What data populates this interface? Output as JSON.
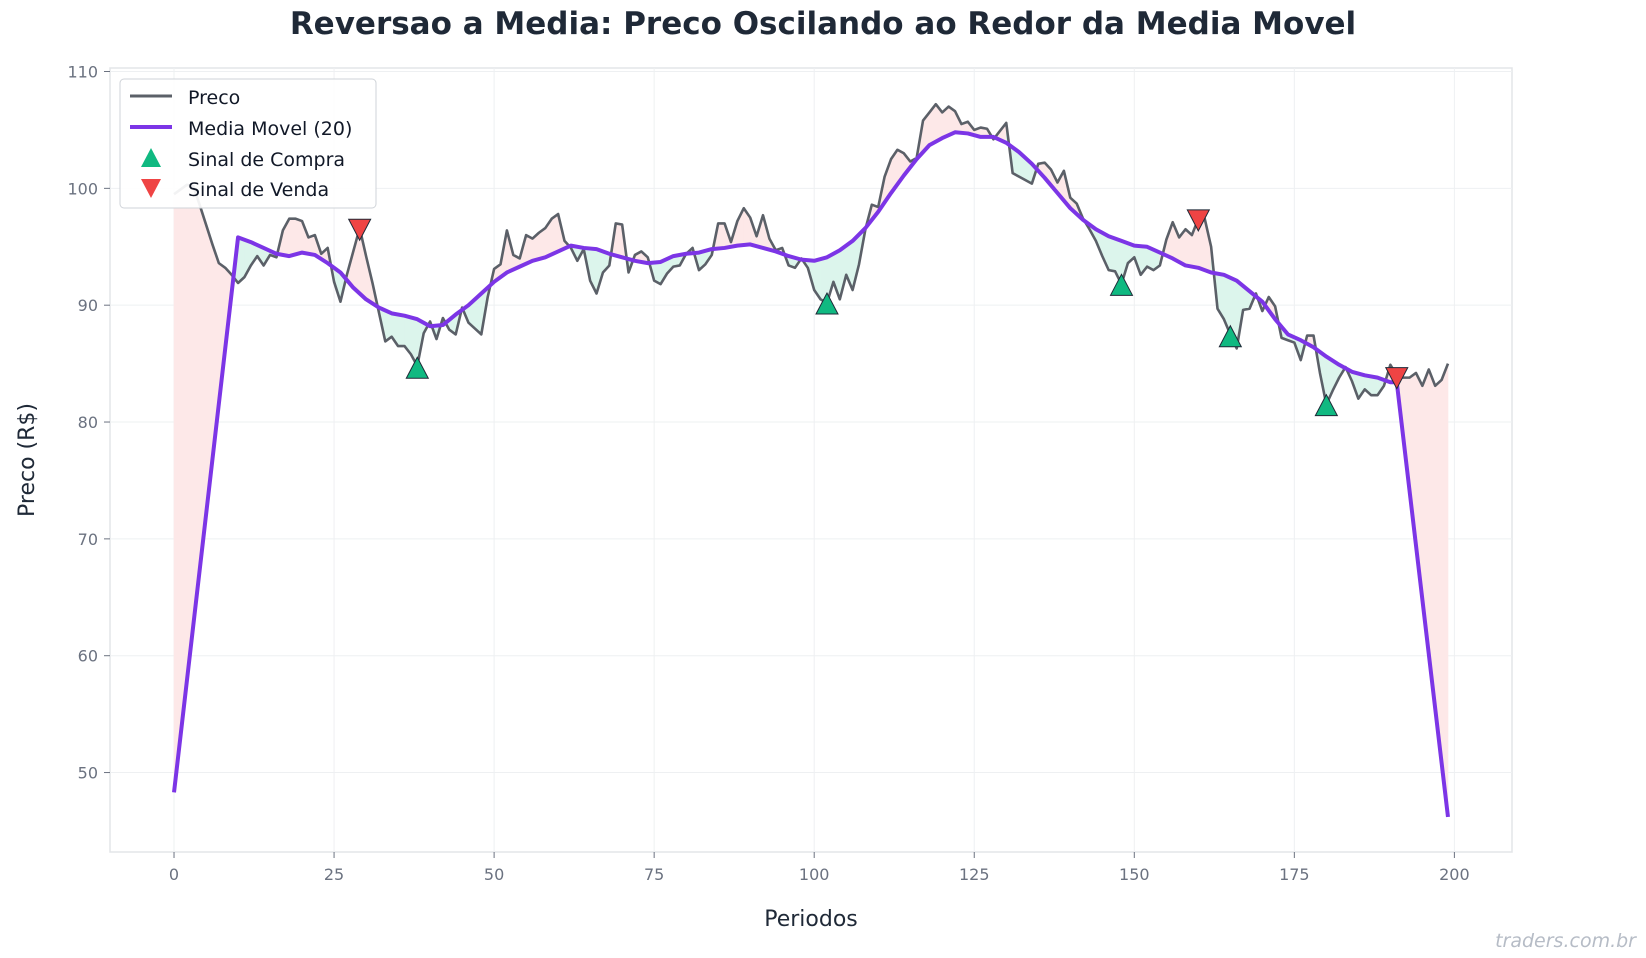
{
  "chart_data": {
    "type": "line",
    "title": "Reversao a Media: Preco Oscilando ao Redor da Media Movel",
    "xlabel": "Periodos",
    "ylabel": "Preco (R$)",
    "xlim": [
      -10,
      209
    ],
    "ylim": [
      43.2,
      110.3
    ],
    "x_ticks": [
      0,
      25,
      50,
      75,
      100,
      125,
      150,
      175,
      200
    ],
    "y_ticks": [
      50,
      60,
      70,
      80,
      90,
      100,
      110
    ],
    "grid": true,
    "legend_position": "top-left",
    "legend": [
      "Preco",
      "Media Movel (20)",
      "Sinal de Compra",
      "Sinal de Venda"
    ],
    "colors": {
      "price": "#5b6068",
      "ma": "#7c35e6",
      "buy": "#10b981",
      "sell": "#ef4444",
      "fill_above": "#fde8e8",
      "fill_below": "#dcf5ec"
    },
    "series": [
      {
        "name": "Preco",
        "points": [
          [
            0,
            99.5
          ],
          [
            1,
            99.9
          ],
          [
            2,
            100.3
          ],
          [
            3,
            100.2
          ],
          [
            4,
            98.6
          ],
          [
            5,
            96.9
          ],
          [
            6,
            95.2
          ],
          [
            7,
            93.6
          ],
          [
            8,
            93.2
          ],
          [
            9,
            92.6
          ],
          [
            10,
            91.9
          ],
          [
            11,
            92.4
          ],
          [
            12,
            93.4
          ],
          [
            13,
            94.2
          ],
          [
            14,
            93.4
          ],
          [
            15,
            94.3
          ],
          [
            16,
            94.1
          ],
          [
            17,
            96.4
          ],
          [
            18,
            97.4
          ],
          [
            19,
            97.4
          ],
          [
            20,
            97.2
          ],
          [
            21,
            95.8
          ],
          [
            22,
            96
          ],
          [
            23,
            94.4
          ],
          [
            24,
            94.9
          ],
          [
            25,
            92
          ],
          [
            26,
            90.3
          ],
          [
            27,
            92.6
          ],
          [
            28,
            94.6
          ],
          [
            29,
            96.6
          ],
          [
            30,
            94.2
          ],
          [
            31,
            91.9
          ],
          [
            32,
            89.4
          ],
          [
            33,
            86.9
          ],
          [
            34,
            87.3
          ],
          [
            35,
            86.5
          ],
          [
            36,
            86.5
          ],
          [
            37,
            85.8
          ],
          [
            38,
            84.8
          ],
          [
            39,
            87.6
          ],
          [
            40,
            88.6
          ],
          [
            41,
            87.1
          ],
          [
            42,
            88.9
          ],
          [
            43,
            87.9
          ],
          [
            44,
            87.5
          ],
          [
            45,
            89.8
          ],
          [
            46,
            88.5
          ],
          [
            47,
            88
          ],
          [
            48,
            87.5
          ],
          [
            49,
            90.7
          ],
          [
            50,
            93.1
          ],
          [
            51,
            93.5
          ],
          [
            52,
            96.4
          ],
          [
            53,
            94.3
          ],
          [
            54,
            94
          ],
          [
            55,
            96
          ],
          [
            56,
            95.7
          ],
          [
            57,
            96.2
          ],
          [
            58,
            96.6
          ],
          [
            59,
            97.4
          ],
          [
            60,
            97.8
          ],
          [
            61,
            95.5
          ],
          [
            62,
            94.9
          ],
          [
            63,
            93.8
          ],
          [
            64,
            94.8
          ],
          [
            65,
            92.1
          ],
          [
            66,
            91
          ],
          [
            67,
            92.8
          ],
          [
            68,
            93.4
          ],
          [
            69,
            97
          ],
          [
            70,
            96.9
          ],
          [
            71,
            92.8
          ],
          [
            72,
            94.3
          ],
          [
            73,
            94.6
          ],
          [
            74,
            94.1
          ],
          [
            75,
            92.1
          ],
          [
            76,
            91.8
          ],
          [
            77,
            92.7
          ],
          [
            78,
            93.3
          ],
          [
            79,
            93.4
          ],
          [
            80,
            94.4
          ],
          [
            81,
            94.9
          ],
          [
            82,
            93
          ],
          [
            83,
            93.5
          ],
          [
            84,
            94.3
          ],
          [
            85,
            97
          ],
          [
            86,
            97
          ],
          [
            87,
            95.4
          ],
          [
            88,
            97.2
          ],
          [
            89,
            98.3
          ],
          [
            90,
            97.5
          ],
          [
            91,
            95.9
          ],
          [
            92,
            97.7
          ],
          [
            93,
            95.7
          ],
          [
            94,
            94.7
          ],
          [
            95,
            94.9
          ],
          [
            96,
            93.4
          ],
          [
            97,
            93.2
          ],
          [
            98,
            94
          ],
          [
            99,
            93.2
          ],
          [
            100,
            91.3
          ],
          [
            101,
            90.5
          ],
          [
            102,
            90.2
          ],
          [
            103,
            92
          ],
          [
            104,
            90.5
          ],
          [
            105,
            92.6
          ],
          [
            106,
            91.3
          ],
          [
            107,
            93.5
          ],
          [
            108,
            96.5
          ],
          [
            109,
            98.6
          ],
          [
            110,
            98.4
          ],
          [
            111,
            101
          ],
          [
            112,
            102.5
          ],
          [
            113,
            103.3
          ],
          [
            114,
            103
          ],
          [
            115,
            102.3
          ],
          [
            116,
            102.6
          ],
          [
            117,
            105.8
          ],
          [
            118,
            106.5
          ],
          [
            119,
            107.2
          ],
          [
            120,
            106.5
          ],
          [
            121,
            107
          ],
          [
            122,
            106.6
          ],
          [
            123,
            105.5
          ],
          [
            124,
            105.7
          ],
          [
            125,
            105
          ],
          [
            126,
            105.2
          ],
          [
            127,
            105.1
          ],
          [
            128,
            104.2
          ],
          [
            129,
            104.9
          ],
          [
            130,
            105.6
          ],
          [
            131,
            101.3
          ],
          [
            132,
            101
          ],
          [
            133,
            100.7
          ],
          [
            134,
            100.4
          ],
          [
            135,
            102.1
          ],
          [
            136,
            102.2
          ],
          [
            137,
            101.6
          ],
          [
            138,
            100.5
          ],
          [
            139,
            101.5
          ],
          [
            140,
            99.2
          ],
          [
            141,
            98.7
          ],
          [
            142,
            97.4
          ],
          [
            143,
            96.5
          ],
          [
            144,
            95.5
          ],
          [
            145,
            94.2
          ],
          [
            146,
            93
          ],
          [
            147,
            92.9
          ],
          [
            148,
            91.8
          ],
          [
            149,
            93.6
          ],
          [
            150,
            94.1
          ],
          [
            151,
            92.6
          ],
          [
            152,
            93.3
          ],
          [
            153,
            93
          ],
          [
            154,
            93.4
          ],
          [
            155,
            95.6
          ],
          [
            156,
            97.1
          ],
          [
            157,
            95.8
          ],
          [
            158,
            96.5
          ],
          [
            159,
            96
          ],
          [
            160,
            97.4
          ],
          [
            161,
            97.4
          ],
          [
            162,
            95
          ],
          [
            163,
            89.7
          ],
          [
            164,
            88.8
          ],
          [
            165,
            87.5
          ],
          [
            166,
            86.3
          ],
          [
            167,
            89.6
          ],
          [
            168,
            89.7
          ],
          [
            169,
            91
          ],
          [
            170,
            89.5
          ],
          [
            171,
            90.7
          ],
          [
            172,
            89.9
          ],
          [
            173,
            87.2
          ],
          [
            174,
            87
          ],
          [
            175,
            86.8
          ],
          [
            176,
            85.3
          ],
          [
            177,
            87.4
          ],
          [
            178,
            87.4
          ],
          [
            179,
            84.2
          ],
          [
            180,
            81.5
          ],
          [
            181,
            82.7
          ],
          [
            182,
            83.8
          ],
          [
            183,
            84.7
          ],
          [
            184,
            83.5
          ],
          [
            185,
            82
          ],
          [
            186,
            82.8
          ],
          [
            187,
            82.3
          ],
          [
            188,
            82.3
          ],
          [
            189,
            83.1
          ],
          [
            190,
            84.9
          ],
          [
            191,
            84
          ],
          [
            192,
            83.8
          ],
          [
            193,
            83.8
          ],
          [
            194,
            84.2
          ],
          [
            195,
            83.1
          ],
          [
            196,
            84.5
          ],
          [
            197,
            83.1
          ],
          [
            198,
            83.6
          ],
          [
            199,
            85
          ]
        ]
      },
      {
        "name": "Media Movel (20)",
        "points": [
          [
            0,
            48.3
          ],
          [
            10,
            95.8
          ],
          [
            12,
            95.4
          ],
          [
            14,
            94.9
          ],
          [
            16,
            94.4
          ],
          [
            18,
            94.2
          ],
          [
            20,
            94.5
          ],
          [
            22,
            94.3
          ],
          [
            24,
            93.6
          ],
          [
            26,
            92.8
          ],
          [
            28,
            91.5
          ],
          [
            30,
            90.5
          ],
          [
            32,
            89.8
          ],
          [
            34,
            89.3
          ],
          [
            36,
            89.1
          ],
          [
            38,
            88.8
          ],
          [
            40,
            88.2
          ],
          [
            42,
            88.3
          ],
          [
            44,
            89.2
          ],
          [
            46,
            90
          ],
          [
            48,
            91
          ],
          [
            50,
            92
          ],
          [
            52,
            92.8
          ],
          [
            54,
            93.3
          ],
          [
            56,
            93.8
          ],
          [
            58,
            94.1
          ],
          [
            60,
            94.6
          ],
          [
            62,
            95.1
          ],
          [
            64,
            94.9
          ],
          [
            66,
            94.8
          ],
          [
            68,
            94.4
          ],
          [
            70,
            94.1
          ],
          [
            72,
            93.8
          ],
          [
            74,
            93.6
          ],
          [
            76,
            93.7
          ],
          [
            78,
            94.2
          ],
          [
            80,
            94.4
          ],
          [
            82,
            94.5
          ],
          [
            84,
            94.8
          ],
          [
            86,
            94.9
          ],
          [
            88,
            95.1
          ],
          [
            90,
            95.2
          ],
          [
            92,
            94.9
          ],
          [
            94,
            94.6
          ],
          [
            96,
            94.2
          ],
          [
            98,
            93.9
          ],
          [
            100,
            93.8
          ],
          [
            102,
            94.1
          ],
          [
            104,
            94.7
          ],
          [
            106,
            95.5
          ],
          [
            108,
            96.6
          ],
          [
            110,
            98
          ],
          [
            112,
            99.6
          ],
          [
            114,
            101.1
          ],
          [
            116,
            102.5
          ],
          [
            118,
            103.7
          ],
          [
            120,
            104.3
          ],
          [
            122,
            104.8
          ],
          [
            124,
            104.7
          ],
          [
            126,
            104.4
          ],
          [
            128,
            104.4
          ],
          [
            130,
            103.9
          ],
          [
            132,
            103.1
          ],
          [
            134,
            102.1
          ],
          [
            136,
            100.9
          ],
          [
            138,
            99.6
          ],
          [
            140,
            98.3
          ],
          [
            142,
            97.3
          ],
          [
            144,
            96.5
          ],
          [
            146,
            95.9
          ],
          [
            148,
            95.5
          ],
          [
            150,
            95.1
          ],
          [
            152,
            95
          ],
          [
            154,
            94.5
          ],
          [
            156,
            94
          ],
          [
            158,
            93.4
          ],
          [
            160,
            93.2
          ],
          [
            162,
            92.8
          ],
          [
            164,
            92.6
          ],
          [
            166,
            92.1
          ],
          [
            168,
            91.2
          ],
          [
            170,
            90.3
          ],
          [
            172,
            88.8
          ],
          [
            174,
            87.5
          ],
          [
            176,
            87
          ],
          [
            178,
            86.4
          ],
          [
            180,
            85.6
          ],
          [
            182,
            84.9
          ],
          [
            184,
            84.3
          ],
          [
            186,
            84
          ],
          [
            188,
            83.8
          ],
          [
            190,
            83.4
          ],
          [
            191,
            83.4
          ],
          [
            199,
            46.2
          ]
        ]
      }
    ],
    "buy_signals": [
      [
        38,
        84.6
      ],
      [
        102,
        90.1
      ],
      [
        148,
        91.7
      ],
      [
        165,
        87.3
      ],
      [
        180,
        81.4
      ]
    ],
    "sell_signals": [
      [
        29,
        96.5
      ],
      [
        160,
        97.3
      ],
      [
        191,
        83.8
      ]
    ]
  },
  "watermark": "traders.com.br"
}
